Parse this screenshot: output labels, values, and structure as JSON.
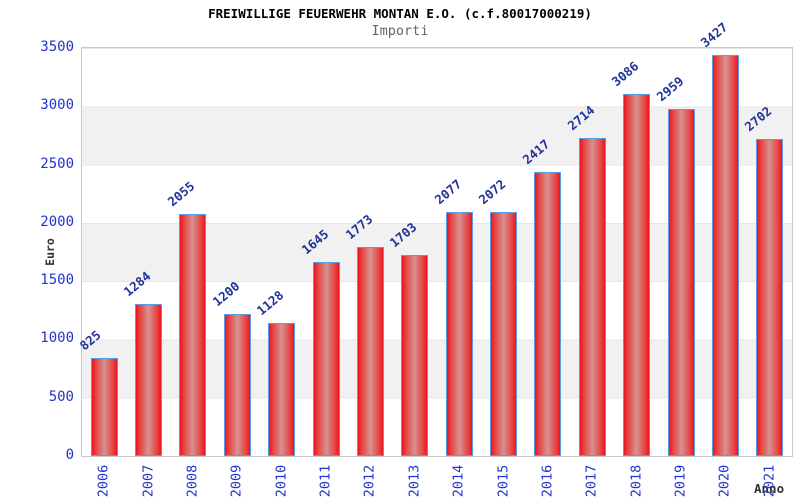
{
  "chart_data": {
    "type": "bar",
    "title": "FREIWILLIGE FEUERWEHR MONTAN E.O. (c.f.80017000219)",
    "subtitle": "Importi",
    "xlabel": "Anno",
    "ylabel": "Euro",
    "categories": [
      "2006",
      "2007",
      "2008",
      "2009",
      "2010",
      "2011",
      "2012",
      "2013",
      "2014",
      "2015",
      "2016",
      "2017",
      "2018",
      "2019",
      "2020",
      "2021"
    ],
    "values": [
      825,
      1284,
      2055,
      1200,
      1128,
      1645,
      1773,
      1703,
      2077,
      2072,
      2417,
      2714,
      3086,
      2959,
      3427,
      2702
    ],
    "ylim": [
      0,
      3500
    ],
    "y_ticks": [
      0,
      500,
      1000,
      1500,
      2000,
      2500,
      3000,
      3500
    ],
    "grid": "alternating horizontal bands every 500",
    "legend": "none",
    "colors": {
      "bar_edge_red": "#ec1420",
      "bar_center_highlight": "#d69292",
      "bar_border_blue": "#5b9ce6",
      "tick_label_blue": "#2233cc",
      "value_label_navy": "#223399",
      "band_gray": "#f1f1f1",
      "plot_border_gray": "#c9c9c9",
      "axis_title_dark": "#333333",
      "title_black": "#000000",
      "subtitle_gray": "#666666"
    }
  }
}
